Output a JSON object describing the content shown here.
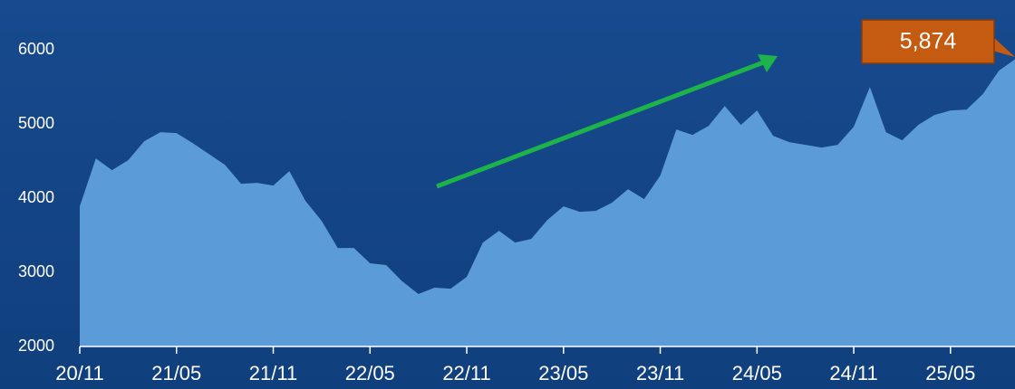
{
  "chart_data": {
    "type": "area",
    "categories": [
      "20/11",
      null,
      null,
      null,
      null,
      null,
      "21/05",
      null,
      null,
      null,
      null,
      null,
      "21/11",
      null,
      null,
      null,
      null,
      null,
      "22/05",
      null,
      null,
      null,
      null,
      null,
      "22/11",
      null,
      null,
      null,
      null,
      null,
      "23/05",
      null,
      null,
      null,
      null,
      null,
      "23/11",
      null,
      null,
      null,
      null,
      null,
      "24/05",
      null,
      null,
      null,
      null,
      null,
      "24/11",
      null,
      null,
      null,
      null,
      null,
      "25/05",
      null,
      null,
      null,
      null
    ],
    "series": [
      {
        "color": "#5b9bd8",
        "values": [
          3890,
          4537,
          4378,
          4512,
          4768,
          4890,
          4878,
          4744,
          4598,
          4451,
          4195,
          4207,
          4171,
          4366,
          3963,
          3695,
          3329,
          3329,
          3122,
          3098,
          2878,
          2707,
          2793,
          2780,
          2939,
          3402,
          3561,
          3402,
          3451,
          3707,
          3890,
          3817,
          3829,
          3939,
          4122,
          3988,
          4305,
          4927,
          4854,
          4976,
          5244,
          4988,
          5183,
          4841,
          4756,
          4720,
          4683,
          4720,
          4963,
          5500,
          4890,
          4780,
          4988,
          5122,
          5183,
          5195,
          5402,
          5720,
          5874
        ]
      }
    ],
    "ylim": [
      2000,
      6600
    ],
    "yticks": [
      2000,
      3000,
      4000,
      5000,
      6000
    ],
    "annotation": "5,874"
  }
}
